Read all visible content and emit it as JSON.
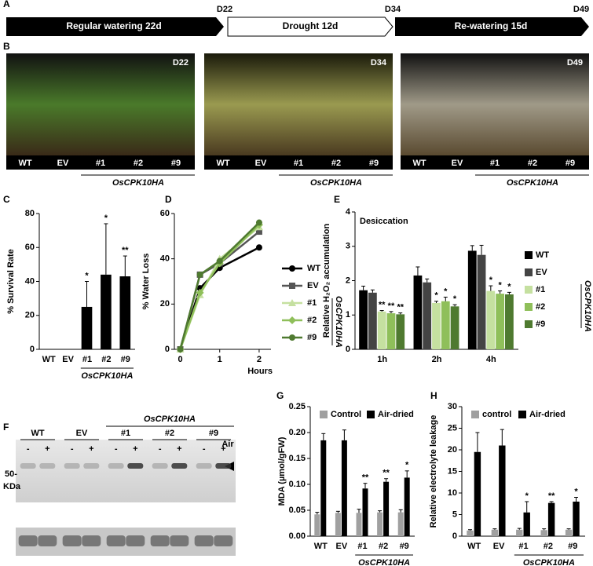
{
  "panel_labels": [
    "A",
    "B",
    "C",
    "D",
    "E",
    "F",
    "G",
    "H"
  ],
  "timeline": {
    "segments": [
      "Regular watering 22d",
      "Drought 12d",
      "Re-watering 15d"
    ],
    "days": [
      "D22",
      "D34",
      "D49"
    ]
  },
  "photos": [
    {
      "day": "D22"
    },
    {
      "day": "D34"
    },
    {
      "day": "D49"
    }
  ],
  "photo_lanes": [
    "WT",
    "EV",
    "#1",
    "#2",
    "#9"
  ],
  "photo_group": "OsCPK10HA",
  "blot": {
    "groups": [
      "WT",
      "EV",
      "#1",
      "#2",
      "#9"
    ],
    "treatments": [
      "-",
      "+"
    ],
    "treatment_label": "Air",
    "marker": "50-",
    "marker_unit": "KDa",
    "group_label": "OsCPK10HA"
  },
  "chart_data": [
    {
      "type": "bar",
      "ylabel": "% Survival Rate",
      "categories": [
        "WT",
        "EV",
        "#1",
        "#2",
        "#9"
      ],
      "series": [
        {
          "color": "#000000",
          "values": [
            0,
            0,
            25,
            44,
            43
          ],
          "errors": [
            0,
            0,
            15,
            30,
            12
          ],
          "stars": [
            null,
            null,
            "*",
            "*",
            "**"
          ]
        }
      ],
      "ylim": [
        0,
        80
      ],
      "yticks": [
        0,
        20,
        40,
        60,
        80
      ],
      "group_label": "OsCPK10HA"
    },
    {
      "type": "line",
      "ylabel": "% Water Loss",
      "xlabel": "Hours",
      "x": [
        0,
        0.5,
        1,
        2
      ],
      "series": [
        {
          "name": "WT",
          "color": "#000000",
          "marker": "circle",
          "values": [
            0,
            27,
            36,
            45
          ]
        },
        {
          "name": "EV",
          "color": "#555555",
          "marker": "square",
          "values": [
            0,
            33,
            38,
            52
          ]
        },
        {
          "name": "#1",
          "color": "#c5e0a0",
          "marker": "triangle",
          "values": [
            0,
            24,
            40,
            54
          ]
        },
        {
          "name": "#2",
          "color": "#8fbf5a",
          "marker": "diamond",
          "values": [
            0,
            25,
            38,
            55
          ]
        },
        {
          "name": "#9",
          "color": "#4f7a30",
          "marker": "circle",
          "values": [
            0,
            33,
            39,
            56
          ]
        }
      ],
      "xlim": [
        -0.15,
        2.3
      ],
      "xticks": [
        0,
        1,
        2
      ],
      "ylim": [
        0,
        60
      ],
      "yticks": [
        0,
        20,
        40,
        60
      ],
      "legend": "right",
      "group_label": "OsCPK10HA"
    },
    {
      "type": "bar",
      "annotation": "Desiccation",
      "ylabel": "Relative H₂O₂ accumulation",
      "categories": [
        "1h",
        "2h",
        "4h"
      ],
      "series": [
        {
          "name": "WT",
          "color": "#000000",
          "values": [
            1.72,
            2.15,
            2.87
          ],
          "errors": [
            0.12,
            0.25,
            0.15
          ],
          "stars": [
            null,
            null,
            null
          ]
        },
        {
          "name": "EV",
          "color": "#444444",
          "values": [
            1.65,
            1.95,
            2.75
          ],
          "errors": [
            0.08,
            0.1,
            0.28
          ],
          "stars": [
            null,
            null,
            null
          ]
        },
        {
          "name": "#1",
          "color": "#c5e0a0",
          "values": [
            1.1,
            1.35,
            1.7
          ],
          "errors": [
            0.03,
            0.05,
            0.15
          ],
          "stars": [
            "**",
            "*",
            "*"
          ]
        },
        {
          "name": "#2",
          "color": "#8fbf5a",
          "values": [
            1.05,
            1.4,
            1.62
          ],
          "errors": [
            0.05,
            0.12,
            0.08
          ],
          "stars": [
            "**",
            "*",
            "*"
          ]
        },
        {
          "name": "#9",
          "color": "#4f7a30",
          "values": [
            1.02,
            1.25,
            1.6
          ],
          "errors": [
            0.04,
            0.05,
            0.06
          ],
          "stars": [
            "**",
            "*",
            "*"
          ]
        }
      ],
      "ylim": [
        0,
        4
      ],
      "yticks": [
        0,
        1,
        2,
        3,
        4
      ],
      "legend": "right",
      "group_label": "OsCPK10HA"
    },
    {
      "type": "bar",
      "ylabel": "MDA (µmol/gFW)",
      "categories": [
        "WT",
        "EV",
        "#1",
        "#2",
        "#9"
      ],
      "series": [
        {
          "name": "Control",
          "color": "#a0a0a0",
          "values": [
            0.042,
            0.045,
            0.045,
            0.046,
            0.046
          ],
          "errors": [
            0.004,
            0.003,
            0.007,
            0.003,
            0.005
          ],
          "stars": [
            null,
            null,
            null,
            null,
            null
          ]
        },
        {
          "name": "Air-dried",
          "color": "#000000",
          "values": [
            0.185,
            0.185,
            0.092,
            0.105,
            0.113
          ],
          "errors": [
            0.013,
            0.02,
            0.01,
            0.006,
            0.013
          ],
          "stars": [
            null,
            null,
            "**",
            "**",
            "*"
          ]
        }
      ],
      "ylim": [
        0,
        0.25
      ],
      "yticks": [
        {
          "value": 0,
          "label": "0.00"
        },
        {
          "value": 0.05,
          "label": "0.05"
        },
        {
          "value": 0.1,
          "label": "0.10"
        },
        {
          "value": 0.15,
          "label": "0.15"
        },
        {
          "value": 0.2,
          "label": "0.20"
        },
        {
          "value": 0.25,
          "label": "0.25"
        }
      ],
      "legend": "top",
      "group_label": "OsCPK10HA"
    },
    {
      "type": "bar",
      "ylabel": "Relative electrolyte leakage",
      "categories": [
        "WT",
        "EV",
        "#1",
        "#2",
        "#9"
      ],
      "series": [
        {
          "name": "control",
          "color": "#a0a0a0",
          "values": [
            1.3,
            1.5,
            1.5,
            1.4,
            1.5
          ],
          "errors": [
            0.2,
            0.2,
            0.3,
            0.3,
            0.2
          ],
          "stars": [
            null,
            null,
            null,
            null,
            null
          ]
        },
        {
          "name": "Air-dried",
          "color": "#000000",
          "values": [
            19.5,
            21,
            5.5,
            7.7,
            8
          ],
          "errors": [
            4.5,
            3.7,
            2.5,
            0.3,
            1
          ],
          "stars": [
            null,
            null,
            "*",
            "**",
            "*"
          ]
        }
      ],
      "ylim": [
        0,
        30
      ],
      "yticks": [
        0,
        5,
        10,
        15,
        20,
        25,
        30
      ],
      "legend": "top",
      "group_label": "OsCPK10HA"
    }
  ]
}
